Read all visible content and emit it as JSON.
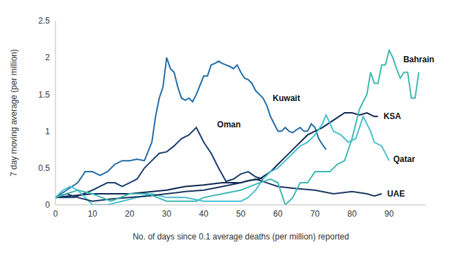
{
  "chart_data": {
    "type": "line",
    "x_label": "No. of days since 0.1 average deaths (per million) reported",
    "y_label": "7 day moving average (per million)",
    "xlim": [
      0,
      100
    ],
    "xticks": [
      0,
      10,
      20,
      30,
      40,
      50,
      60,
      70,
      80,
      90
    ],
    "ylim": [
      0,
      2.5
    ],
    "yticks": [
      0,
      0.5,
      1,
      1.5,
      2,
      2.5
    ],
    "grid": false,
    "series": [
      {
        "name": "Kuwait",
        "color": "#1f6aa5",
        "x": [
          0,
          3,
          6,
          8,
          10,
          12,
          14,
          16,
          18,
          20,
          22,
          24,
          26,
          27,
          28,
          29,
          30,
          31,
          32,
          33,
          34,
          35,
          36,
          37,
          38,
          40,
          41,
          42,
          43,
          44,
          45,
          46,
          47,
          48,
          49,
          50,
          51,
          52,
          53,
          54,
          55,
          56,
          57,
          58,
          59,
          60,
          61,
          62,
          63,
          64,
          65,
          66,
          67,
          68,
          69,
          70,
          71,
          72,
          73
        ],
        "values": [
          0.1,
          0.2,
          0.3,
          0.45,
          0.45,
          0.4,
          0.45,
          0.55,
          0.6,
          0.6,
          0.62,
          0.6,
          0.85,
          1.2,
          1.45,
          1.6,
          2.0,
          1.85,
          1.8,
          1.6,
          1.45,
          1.42,
          1.45,
          1.4,
          1.5,
          1.75,
          1.75,
          1.9,
          1.92,
          1.95,
          1.92,
          1.9,
          1.88,
          1.85,
          1.9,
          1.8,
          1.72,
          1.7,
          1.65,
          1.55,
          1.5,
          1.45,
          1.35,
          1.2,
          1.1,
          1.0,
          1.0,
          1.05,
          1.0,
          0.98,
          1.02,
          1.05,
          1.0,
          1.0,
          1.1,
          1.05,
          0.9,
          0.82,
          0.75
        ]
      },
      {
        "name": "Oman",
        "color": "#173b6c",
        "x": [
          0,
          5,
          10,
          12,
          14,
          16,
          18,
          20,
          22,
          24,
          26,
          28,
          30,
          32,
          34,
          36,
          38,
          40,
          42,
          44,
          46,
          48,
          50,
          52,
          54,
          56
        ],
        "values": [
          0.1,
          0.1,
          0.2,
          0.25,
          0.3,
          0.3,
          0.25,
          0.3,
          0.35,
          0.5,
          0.6,
          0.7,
          0.72,
          0.8,
          0.9,
          0.95,
          1.05,
          0.85,
          0.7,
          0.5,
          0.32,
          0.35,
          0.42,
          0.45,
          0.38,
          0.35
        ]
      },
      {
        "name": "KSA",
        "color": "#0c2552",
        "x": [
          0,
          10,
          20,
          30,
          35,
          40,
          45,
          50,
          52,
          55,
          58,
          60,
          62,
          65,
          68,
          70,
          72,
          75,
          78,
          80,
          82,
          84,
          86,
          87
        ],
        "values": [
          0.1,
          0.15,
          0.15,
          0.2,
          0.25,
          0.27,
          0.3,
          0.3,
          0.33,
          0.35,
          0.45,
          0.55,
          0.65,
          0.8,
          0.95,
          1.0,
          1.05,
          1.15,
          1.25,
          1.25,
          1.22,
          1.25,
          1.2,
          1.2
        ]
      },
      {
        "name": "Qatar",
        "color": "#45bfd1",
        "x": [
          0,
          2,
          4,
          6,
          8,
          10,
          14,
          18,
          22,
          26,
          30,
          35,
          40,
          45,
          50,
          52,
          54,
          56,
          58,
          60,
          62,
          64,
          66,
          68,
          70,
          72,
          73,
          75,
          77,
          79,
          81,
          83,
          85,
          86,
          88,
          90
        ],
        "values": [
          0.1,
          0.2,
          0.25,
          0.2,
          0.1,
          0.0,
          0.0,
          0.05,
          0.1,
          0.15,
          0.1,
          0.1,
          0.05,
          0.05,
          0.05,
          0.1,
          0.2,
          0.35,
          0.45,
          0.5,
          0.6,
          0.7,
          0.8,
          0.85,
          0.95,
          1.1,
          1.22,
          1.0,
          0.95,
          0.85,
          0.9,
          1.2,
          1.0,
          0.85,
          0.8,
          0.6
        ]
      },
      {
        "name": "UAE",
        "color": "#1a355f",
        "x": [
          0,
          3,
          6,
          10,
          15,
          20,
          25,
          30,
          35,
          40,
          45,
          50,
          54,
          57,
          60,
          65,
          70,
          75,
          80,
          84,
          86,
          88
        ],
        "values": [
          0.1,
          0.15,
          0.1,
          0.05,
          0.08,
          0.1,
          0.12,
          0.15,
          0.18,
          0.2,
          0.25,
          0.3,
          0.35,
          0.3,
          0.25,
          0.22,
          0.2,
          0.15,
          0.18,
          0.15,
          0.12,
          0.15
        ]
      },
      {
        "name": "Bahrain",
        "color": "#3db8b0",
        "x": [
          0,
          3,
          6,
          10,
          15,
          20,
          25,
          30,
          35,
          38,
          40,
          45,
          50,
          55,
          58,
          60,
          62,
          64,
          66,
          68,
          70,
          74,
          76,
          78,
          80,
          82,
          84,
          85,
          86,
          87,
          88,
          89,
          90,
          91,
          92,
          93,
          94,
          95,
          96,
          97,
          98
        ],
        "values": [
          0.1,
          0.15,
          0.2,
          0.15,
          0.05,
          0.15,
          0.15,
          0.05,
          0.05,
          0.05,
          0.1,
          0.15,
          0.2,
          0.3,
          0.35,
          0.3,
          0.0,
          0.1,
          0.3,
          0.3,
          0.45,
          0.45,
          0.55,
          0.6,
          0.9,
          1.3,
          1.5,
          1.8,
          1.65,
          1.65,
          1.9,
          1.9,
          2.1,
          2.0,
          1.85,
          1.72,
          1.8,
          1.8,
          1.45,
          1.45,
          1.8
        ]
      }
    ]
  }
}
